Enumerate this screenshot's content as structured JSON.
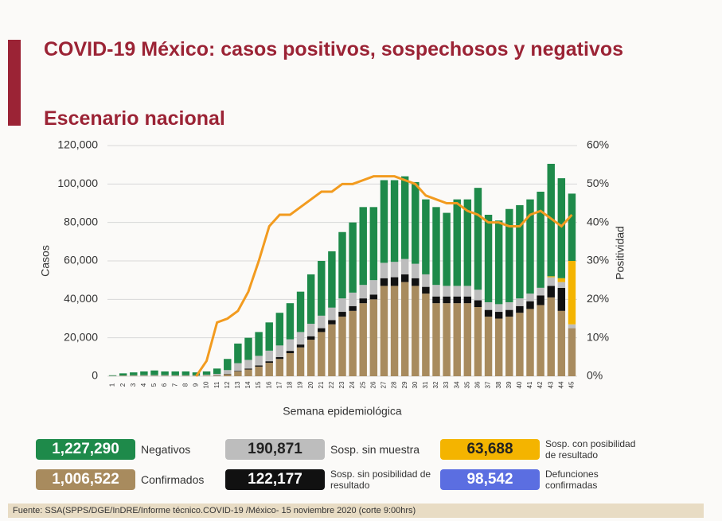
{
  "header": {
    "title": "COVID-19 México: casos positivos, sospechosos y negativos",
    "subtitle": "Escenario nacional"
  },
  "chart_data": {
    "type": "stacked-bar-line",
    "categories": [
      "1",
      "2",
      "3",
      "4",
      "5",
      "6",
      "7",
      "8",
      "9",
      "10",
      "11",
      "12",
      "13",
      "14",
      "15",
      "16",
      "17",
      "18",
      "19",
      "20",
      "21",
      "22",
      "23",
      "24",
      "25",
      "26",
      "27",
      "28",
      "29",
      "30",
      "31",
      "32",
      "33",
      "34",
      "35",
      "36",
      "37",
      "38",
      "39",
      "40",
      "41",
      "42",
      "43",
      "44",
      "45"
    ],
    "series": [
      {
        "name": "Confirmados",
        "color": "#a88b5e",
        "total": 1006522,
        "total_label": "1,006,522",
        "values": [
          100,
          200,
          200,
          200,
          200,
          200,
          200,
          200,
          200,
          300,
          300,
          1000,
          2500,
          3500,
          5000,
          7000,
          9000,
          12000,
          15000,
          19000,
          23000,
          27000,
          31000,
          34000,
          38000,
          40000,
          47000,
          47000,
          49000,
          47000,
          43000,
          38000,
          38000,
          38000,
          38000,
          36000,
          31000,
          30000,
          31000,
          33000,
          35000,
          37000,
          41000,
          34000,
          25000
        ]
      },
      {
        "name": "Sosp. sin posibilidad de resultado",
        "color": "#111111",
        "total": 122177,
        "total_label": "122,177",
        "values": [
          0,
          0,
          0,
          0,
          0,
          0,
          0,
          0,
          0,
          0,
          100,
          200,
          300,
          500,
          600,
          800,
          1000,
          1200,
          1500,
          1800,
          2000,
          2200,
          2500,
          2500,
          2500,
          2500,
          4000,
          4500,
          4000,
          4000,
          3500,
          3500,
          3500,
          3500,
          3500,
          3500,
          3500,
          3500,
          3500,
          3500,
          4000,
          5000,
          6000,
          12000,
          0
        ]
      },
      {
        "name": "Sosp. sin muestra",
        "color": "#bdbdbd",
        "total": 190871,
        "total_label": "190,871",
        "values": [
          100,
          200,
          300,
          400,
          400,
          400,
          300,
          300,
          300,
          500,
          800,
          2000,
          4000,
          4500,
          5000,
          5500,
          6000,
          6000,
          6500,
          6500,
          6500,
          6500,
          7000,
          7000,
          7000,
          7500,
          8000,
          8000,
          8000,
          7500,
          6500,
          6000,
          5500,
          5500,
          5500,
          5500,
          4000,
          4000,
          4000,
          4000,
          4000,
          4000,
          4500,
          3000,
          2000
        ]
      },
      {
        "name": "Sosp. con posibilidad de resultado",
        "color": "#f4b400",
        "total": 63688,
        "total_label": "63,688",
        "values": [
          0,
          0,
          0,
          0,
          0,
          0,
          0,
          0,
          0,
          0,
          0,
          0,
          0,
          0,
          0,
          0,
          0,
          0,
          0,
          0,
          0,
          0,
          0,
          0,
          0,
          0,
          0,
          0,
          0,
          0,
          0,
          0,
          0,
          0,
          0,
          0,
          0,
          0,
          0,
          0,
          0,
          0,
          500,
          2000,
          33000
        ]
      },
      {
        "name": "Negativos",
        "color": "#1e8a4a",
        "total": 1227290,
        "total_label": "1,227,290",
        "values": [
          300,
          1100,
          1500,
          1900,
          2400,
          1900,
          2000,
          2000,
          1500,
          1700,
          2800,
          5800,
          10200,
          11500,
          12400,
          14700,
          17000,
          18800,
          21000,
          25700,
          28500,
          29300,
          34500,
          36500,
          40500,
          38000,
          43000,
          42500,
          43000,
          42500,
          39000,
          40500,
          38000,
          45000,
          45000,
          53000,
          45500,
          43500,
          48500,
          48500,
          49000,
          50000,
          58500,
          52000,
          35000
        ]
      }
    ],
    "positivity": {
      "axis": "y2",
      "color": "#f29b1f",
      "values": [
        null,
        null,
        null,
        null,
        null,
        null,
        null,
        null,
        0,
        4,
        14,
        15,
        17,
        22,
        30,
        39,
        42,
        42,
        44,
        46,
        48,
        48,
        50,
        50,
        51,
        52,
        52,
        52,
        51,
        50,
        47,
        46,
        45,
        45,
        43,
        42,
        40,
        40,
        39,
        39,
        42,
        43,
        41,
        39,
        42
      ]
    },
    "deaths": {
      "name": "Defunciones confirmadas",
      "color": "#5b6ee1",
      "total": 98542,
      "total_label": "98,542"
    },
    "ylabel": "Casos",
    "y2label": "Positividad",
    "xlabel": "Semana epidemiológica",
    "ylim": [
      0,
      120000
    ],
    "yticks": [
      0,
      {
        "value": 20000,
        "label": "20,000"
      },
      {
        "value": 40000,
        "label": "40,000"
      },
      {
        "value": 60000,
        "label": "60,000"
      },
      {
        "value": 80000,
        "label": "80,000"
      },
      {
        "value": 100000,
        "label": "100,000"
      },
      {
        "value": 120000,
        "label": "120,000"
      }
    ],
    "y2lim": [
      0,
      60
    ],
    "y2ticks": [
      {
        "value": 0,
        "label": "0%"
      },
      {
        "value": 10,
        "label": "10%"
      },
      {
        "value": 20,
        "label": "20%"
      },
      {
        "value": 30,
        "label": "30%"
      },
      {
        "value": 40,
        "label": "40%"
      },
      {
        "value": 50,
        "label": "50%"
      },
      {
        "value": 60,
        "label": "60%"
      }
    ],
    "grid": true
  },
  "footer": "Fuente: SSA(SPPS/DGE/InDRE/Informe técnico.COVID-19 /México- 15 noviembre 2020 (corte 9:00hrs)"
}
